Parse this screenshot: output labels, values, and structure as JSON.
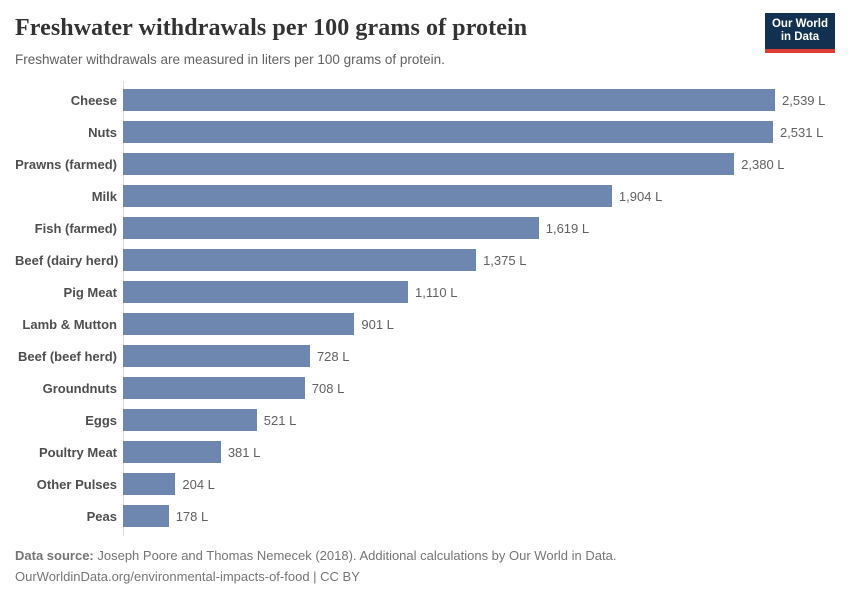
{
  "header": {
    "title": "Freshwater withdrawals per 100 grams of protein",
    "subtitle": "Freshwater withdrawals are measured in liters per 100 grams of protein.",
    "logo": {
      "line1": "Our World",
      "line2": "in Data",
      "bg_color": "#12304F",
      "accent_color": "#DC3E36"
    }
  },
  "chart_data": {
    "type": "bar",
    "orientation": "horizontal",
    "title": "Freshwater withdrawals per 100 grams of protein",
    "xlabel": "",
    "ylabel": "",
    "unit": "liters per 100 grams of protein",
    "xlim": [
      0,
      2539
    ],
    "grid": false,
    "legend": false,
    "bar_color": "#6E87B1",
    "categories": [
      "Cheese",
      "Nuts",
      "Prawns (farmed)",
      "Milk",
      "Fish (farmed)",
      "Beef (dairy herd)",
      "Pig Meat",
      "Lamb & Mutton",
      "Beef (beef herd)",
      "Groundnuts",
      "Eggs",
      "Poultry Meat",
      "Other Pulses",
      "Peas"
    ],
    "values": [
      2539,
      2531,
      2380,
      1904,
      1619,
      1375,
      1110,
      901,
      728,
      708,
      521,
      381,
      204,
      178
    ],
    "value_labels": [
      "2,539 L",
      "2,531 L",
      "2,380 L",
      "1,904 L",
      "1,619 L",
      "1,375 L",
      "1,110 L",
      "901 L",
      "728 L",
      "708 L",
      "521 L",
      "381 L",
      "204 L",
      "178 L"
    ]
  },
  "footer": {
    "source_label": "Data source:",
    "source_text": " Joseph Poore and Thomas Nemecek (2018). Additional calculations by Our World in Data.",
    "credit": "OurWorldinData.org/environmental-impacts-of-food | CC BY"
  }
}
